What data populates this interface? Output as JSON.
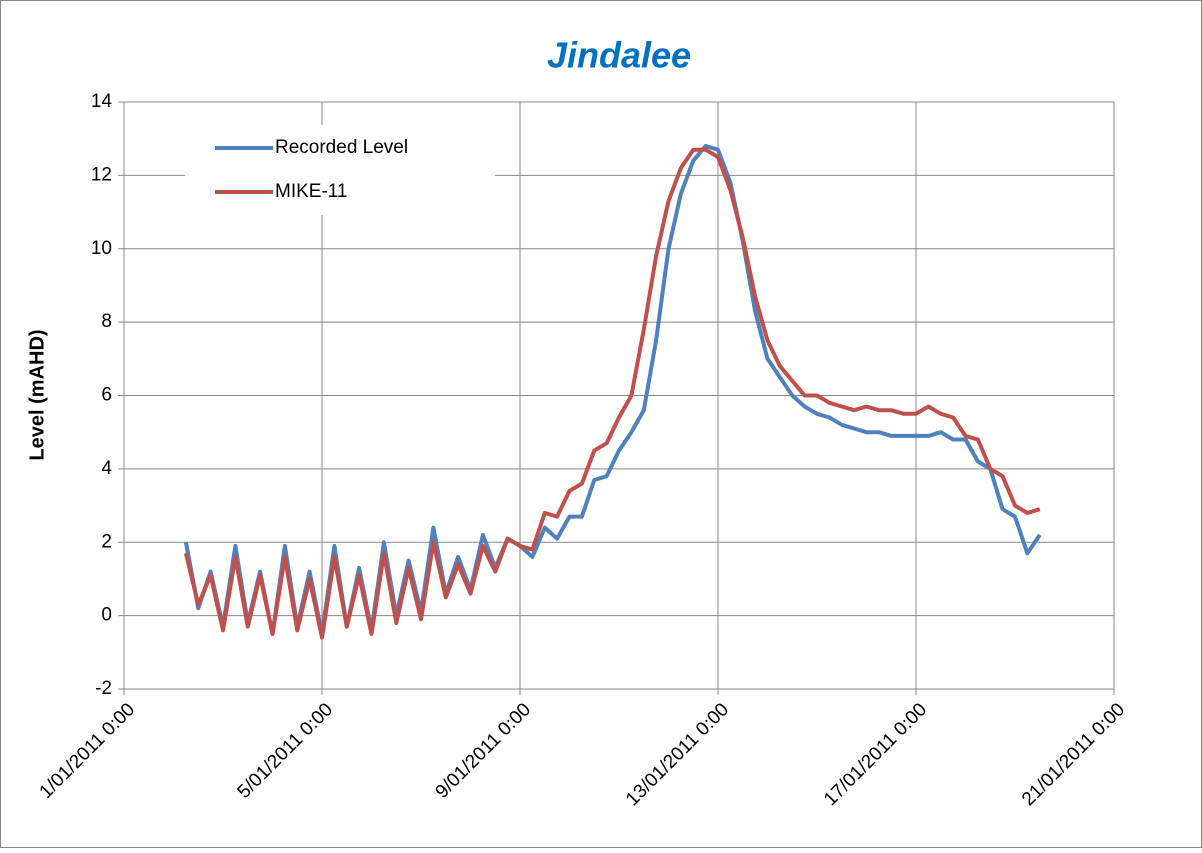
{
  "chart_data": {
    "type": "line",
    "title": "Jindalee",
    "y_label": "Level (mAHD)",
    "x": [
      "2/01/2011 6:00",
      "2/01/2011 12:00",
      "2/01/2011 18:00",
      "3/01/2011 0:00",
      "3/01/2011 6:00",
      "3/01/2011 12:00",
      "3/01/2011 18:00",
      "4/01/2011 0:00",
      "4/01/2011 6:00",
      "4/01/2011 12:00",
      "4/01/2011 18:00",
      "5/01/2011 0:00",
      "5/01/2011 6:00",
      "5/01/2011 12:00",
      "5/01/2011 18:00",
      "6/01/2011 0:00",
      "6/01/2011 6:00",
      "6/01/2011 12:00",
      "6/01/2011 18:00",
      "7/01/2011 0:00",
      "7/01/2011 6:00",
      "7/01/2011 12:00",
      "7/01/2011 18:00",
      "8/01/2011 0:00",
      "8/01/2011 6:00",
      "8/01/2011 12:00",
      "8/01/2011 18:00",
      "9/01/2011 0:00",
      "9/01/2011 6:00",
      "9/01/2011 12:00",
      "9/01/2011 18:00",
      "10/01/2011 0:00",
      "10/01/2011 6:00",
      "10/01/2011 12:00",
      "10/01/2011 18:00",
      "11/01/2011 0:00",
      "11/01/2011 6:00",
      "11/01/2011 12:00",
      "11/01/2011 18:00",
      "12/01/2011 0:00",
      "12/01/2011 6:00",
      "12/01/2011 12:00",
      "12/01/2011 18:00",
      "13/01/2011 0:00",
      "13/01/2011 6:00",
      "13/01/2011 12:00",
      "13/01/2011 18:00",
      "14/01/2011 0:00",
      "14/01/2011 6:00",
      "14/01/2011 12:00",
      "14/01/2011 18:00",
      "15/01/2011 0:00",
      "15/01/2011 6:00",
      "15/01/2011 12:00",
      "15/01/2011 18:00",
      "16/01/2011 0:00",
      "16/01/2011 6:00",
      "16/01/2011 12:00",
      "16/01/2011 18:00",
      "17/01/2011 0:00",
      "17/01/2011 6:00",
      "17/01/2011 12:00",
      "17/01/2011 18:00",
      "18/01/2011 0:00",
      "18/01/2011 6:00",
      "18/01/2011 12:00",
      "18/01/2011 18:00",
      "19/01/2011 0:00",
      "19/01/2011 6:00",
      "19/01/2011 12:00"
    ],
    "series": [
      {
        "name": "Recorded Level",
        "color": "#4f81bd",
        "values": [
          2.0,
          0.2,
          1.2,
          -0.3,
          1.9,
          -0.2,
          1.2,
          -0.5,
          1.9,
          -0.3,
          1.2,
          -0.5,
          1.9,
          -0.3,
          1.3,
          -0.4,
          2.0,
          0.0,
          1.5,
          0.1,
          2.4,
          0.6,
          1.6,
          0.7,
          2.2,
          1.3,
          2.1,
          1.9,
          1.6,
          2.4,
          2.1,
          2.7,
          2.7,
          3.7,
          3.8,
          4.5,
          5.0,
          5.6,
          7.5,
          10.0,
          11.5,
          12.4,
          12.8,
          12.7,
          11.8,
          10.2,
          8.3,
          7.0,
          6.5,
          6.0,
          5.7,
          5.5,
          5.4,
          5.2,
          5.1,
          5.0,
          5.0,
          4.9,
          4.9,
          4.9,
          4.9,
          5.0,
          4.8,
          4.8,
          4.2,
          4.0,
          2.9,
          2.7,
          1.7,
          2.2
        ]
      },
      {
        "name": "MIKE-11",
        "color": "#c0504d",
        "values": [
          1.7,
          0.3,
          1.1,
          -0.4,
          1.6,
          -0.3,
          1.1,
          -0.5,
          1.6,
          -0.4,
          1.0,
          -0.6,
          1.6,
          -0.3,
          1.1,
          -0.5,
          1.7,
          -0.2,
          1.3,
          -0.1,
          2.0,
          0.5,
          1.4,
          0.6,
          1.9,
          1.2,
          2.1,
          1.9,
          1.8,
          2.8,
          2.7,
          3.4,
          3.6,
          4.5,
          4.7,
          5.4,
          6.0,
          7.8,
          9.8,
          11.3,
          12.2,
          12.7,
          12.7,
          12.5,
          11.6,
          10.3,
          8.7,
          7.5,
          6.8,
          6.4,
          6.0,
          6.0,
          5.8,
          5.7,
          5.6,
          5.7,
          5.6,
          5.6,
          5.5,
          5.5,
          5.7,
          5.5,
          5.4,
          4.9,
          4.8,
          4.0,
          3.8,
          3.0,
          2.8,
          2.9
        ]
      }
    ],
    "xlim": [
      "1/01/2011 0:00",
      "21/01/2011 0:00"
    ],
    "xticks": [
      "1/01/2011 0:00",
      "5/01/2011 0:00",
      "9/01/2011 0:00",
      "13/01/2011 0:00",
      "17/01/2011 0:00",
      "21/01/2011 0:00"
    ],
    "ylim": [
      -2,
      14
    ],
    "yticks": [
      -2,
      0,
      2,
      4,
      6,
      8,
      10,
      12,
      14
    ],
    "grid": true,
    "legend": "top-left"
  }
}
